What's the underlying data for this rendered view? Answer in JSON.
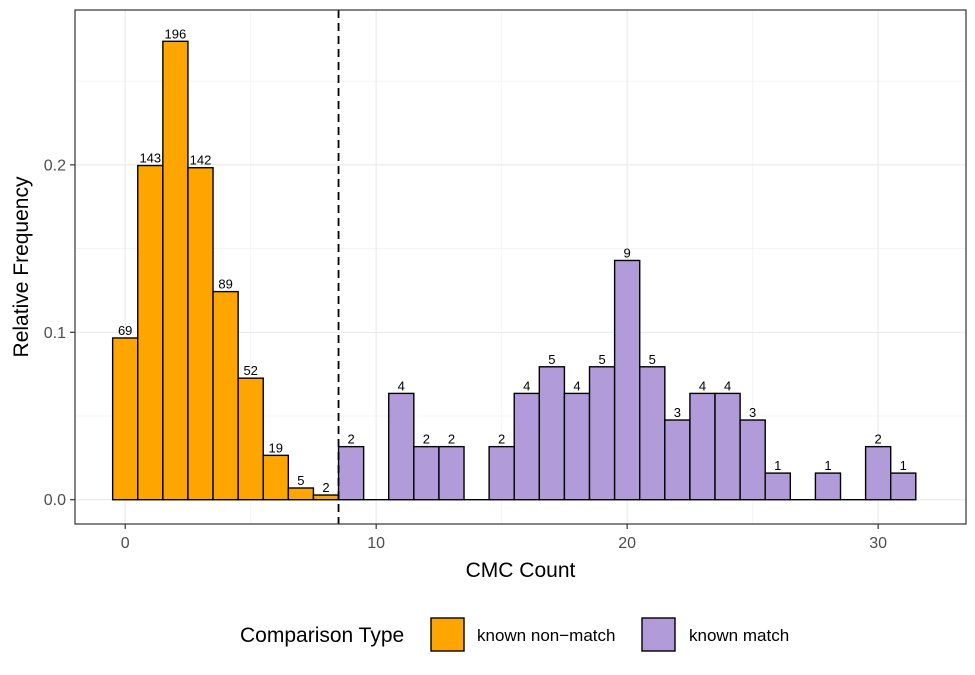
{
  "chart_data": {
    "type": "bar",
    "xlabel": "CMC Count",
    "ylabel": "Relative Frequency",
    "xlim": [
      -2,
      33.5
    ],
    "ylim": [
      -0.0145,
      0.2925
    ],
    "x_ticks": [
      {
        "value": 0,
        "label": "0"
      },
      {
        "value": 10,
        "label": "10"
      },
      {
        "value": 20,
        "label": "20"
      },
      {
        "value": 30,
        "label": "30"
      }
    ],
    "y_ticks": [
      {
        "value": 0.0,
        "label": "0.0"
      },
      {
        "value": 0.1,
        "label": "0.1"
      },
      {
        "value": 0.2,
        "label": "0.2"
      }
    ],
    "x_minor": [
      5,
      15,
      25
    ],
    "y_minor": [
      0.05,
      0.15,
      0.25
    ],
    "grid": true,
    "threshold_line": {
      "x": 8.5,
      "style": "dashed"
    },
    "legend": {
      "title": "Comparison Type",
      "placement": "bottom",
      "entries": [
        {
          "label": "known non−match",
          "color": "#FFA500"
        },
        {
          "label": "known match",
          "color": "#B19CD9"
        }
      ]
    },
    "series": [
      {
        "name": "known non−match",
        "color": "#FFA500",
        "bars": [
          {
            "x": 0,
            "y": 0.0966,
            "count": "69"
          },
          {
            "x": 1,
            "y": 0.1996,
            "count": "143"
          },
          {
            "x": 2,
            "y": 0.2738,
            "count": "196"
          },
          {
            "x": 3,
            "y": 0.1983,
            "count": "142"
          },
          {
            "x": 4,
            "y": 0.1243,
            "count": "89"
          },
          {
            "x": 5,
            "y": 0.0726,
            "count": "52"
          },
          {
            "x": 6,
            "y": 0.0265,
            "count": "19"
          },
          {
            "x": 7,
            "y": 0.007,
            "count": "5"
          },
          {
            "x": 8,
            "y": 0.0028,
            "count": "2"
          }
        ]
      },
      {
        "name": "known match",
        "color": "#B19CD9",
        "bars": [
          {
            "x": 9,
            "y": 0.0317,
            "count": "2"
          },
          {
            "x": 11,
            "y": 0.0635,
            "count": "4"
          },
          {
            "x": 12,
            "y": 0.0317,
            "count": "2"
          },
          {
            "x": 13,
            "y": 0.0317,
            "count": "2"
          },
          {
            "x": 15,
            "y": 0.0317,
            "count": "2"
          },
          {
            "x": 16,
            "y": 0.0635,
            "count": "4"
          },
          {
            "x": 17,
            "y": 0.0794,
            "count": "5"
          },
          {
            "x": 18,
            "y": 0.0635,
            "count": "4"
          },
          {
            "x": 19,
            "y": 0.0794,
            "count": "5"
          },
          {
            "x": 20,
            "y": 0.1429,
            "count": "9"
          },
          {
            "x": 21,
            "y": 0.0794,
            "count": "5"
          },
          {
            "x": 22,
            "y": 0.0476,
            "count": "3"
          },
          {
            "x": 23,
            "y": 0.0635,
            "count": "4"
          },
          {
            "x": 24,
            "y": 0.0635,
            "count": "4"
          },
          {
            "x": 25,
            "y": 0.0476,
            "count": "3"
          },
          {
            "x": 26,
            "y": 0.0159,
            "count": "1"
          },
          {
            "x": 28,
            "y": 0.0159,
            "count": "1"
          },
          {
            "x": 30,
            "y": 0.0317,
            "count": "2"
          },
          {
            "x": 31,
            "y": 0.0159,
            "count": "1"
          }
        ],
        "zero_bins": [
          10,
          14,
          27,
          29
        ]
      }
    ]
  }
}
